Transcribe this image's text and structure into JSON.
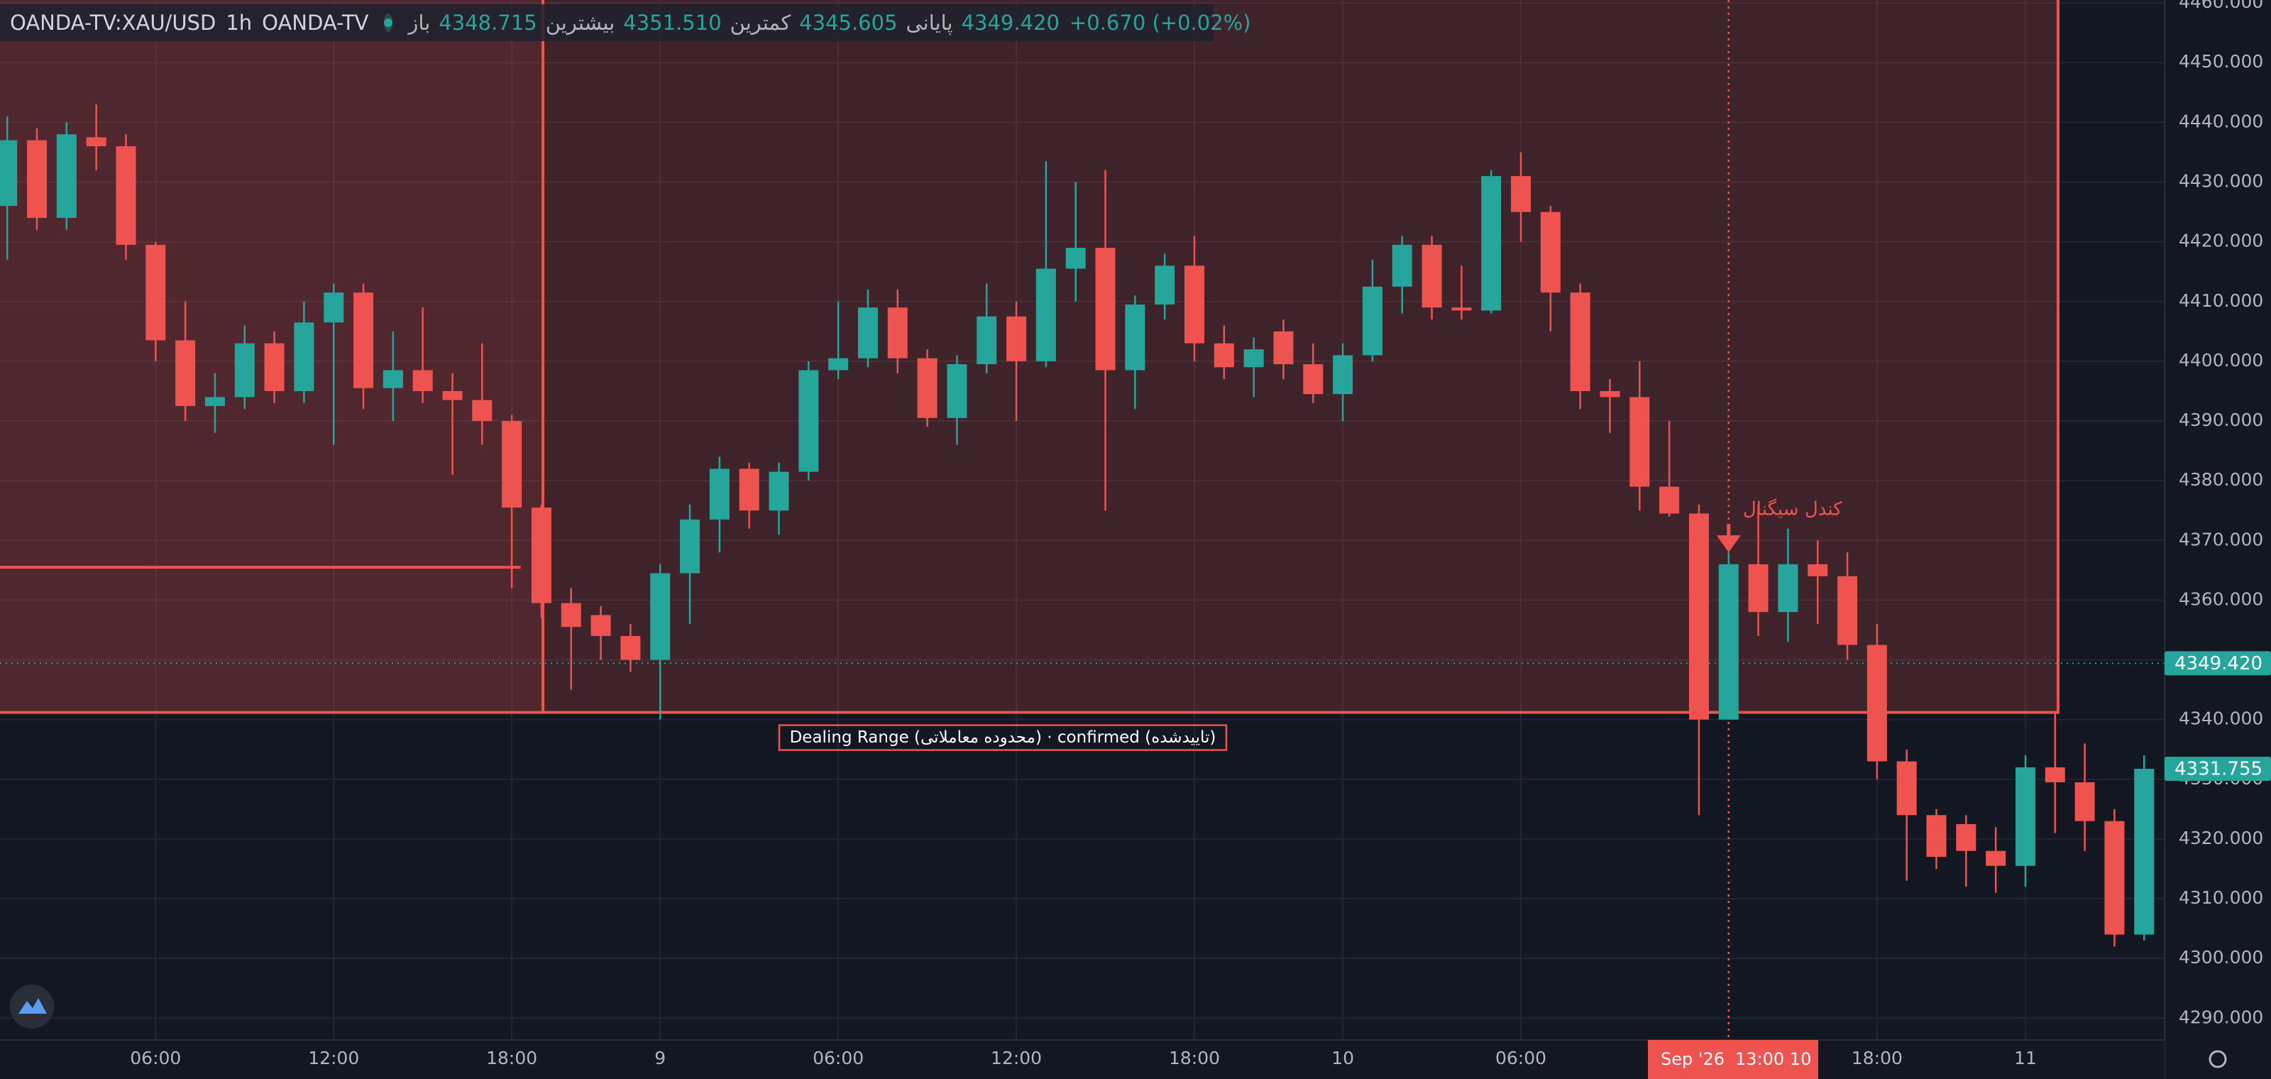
{
  "header": {
    "symbol": "OANDA-TV:XAU/USD",
    "interval": "1h",
    "source": "OANDA-TV",
    "items": [
      {
        "label": "باز",
        "value": "4348.715"
      },
      {
        "label": "بیشترین",
        "value": "4351.510"
      },
      {
        "label": "کمترین",
        "value": "4345.605"
      },
      {
        "label": "پایانی",
        "value": "4349.420"
      }
    ],
    "change": "+0.670 (+0.02%)"
  },
  "chart_data": {
    "type": "candlestick",
    "up_color": "#26a69a",
    "down_color": "#ef5350",
    "grid": true,
    "open": [
      4426,
      4437,
      4424,
      4437.5,
      4436,
      4419.5,
      4403.5,
      4392.5,
      4394,
      4403,
      4395,
      4406.5,
      4411.5,
      4395.5,
      4398.5,
      4395,
      4393.5,
      4390,
      4375.5,
      4359.5,
      4357.5,
      4354,
      4350,
      4364.5,
      4373.5,
      4382,
      4375,
      4381.5,
      4398.5,
      4400.5,
      4409,
      4400.5,
      4390.5,
      4399.5,
      4407.5,
      4400,
      4415.5,
      4419,
      4398.5,
      4409.5,
      4416,
      4403,
      4399,
      4405,
      4399.5,
      4394.5,
      4401,
      4412.5,
      4419.5,
      4409,
      4408.5,
      4431,
      4425,
      4411.5,
      4395,
      4394,
      4379,
      4374.5,
      4340,
      4366,
      4358,
      4366,
      4364,
      4352.5,
      4333,
      4324,
      4322.5,
      4318,
      4315.5,
      4332,
      4329.5,
      4323,
      4304
    ],
    "high": [
      4441,
      4439,
      4440,
      4443,
      4438,
      4420,
      4410,
      4398,
      4406,
      4405,
      4410,
      4413,
      4413,
      4405,
      4409,
      4398,
      4403,
      4391,
      4376,
      4362,
      4359,
      4356,
      4366,
      4376,
      4384,
      4383,
      4383,
      4400,
      4410,
      4412,
      4412,
      4402,
      4401,
      4413,
      4410,
      4433.5,
      4430,
      4432,
      4411,
      4418,
      4421,
      4406,
      4404,
      4407,
      4403,
      4403,
      4417,
      4421,
      4421,
      4416,
      4432,
      4435,
      4426,
      4413,
      4397,
      4400,
      4390,
      4376,
      4368,
      4376,
      4372,
      4370,
      4368,
      4356,
      4335,
      4325,
      4324,
      4322,
      4334,
      4341,
      4336,
      4325,
      4334
    ],
    "low": [
      4417,
      4422,
      4422,
      4432,
      4417,
      4400,
      4390,
      4388,
      4392,
      4393,
      4393,
      4386,
      4392,
      4390,
      4393,
      4381,
      4386,
      4362,
      4357,
      4345,
      4350,
      4348,
      4340,
      4356,
      4368,
      4372,
      4371,
      4380,
      4397,
      4399,
      4398,
      4389,
      4386,
      4398,
      4390,
      4399,
      4410,
      4375,
      4392,
      4407,
      4400,
      4397,
      4394,
      4397,
      4393,
      4390,
      4400,
      4408,
      4407,
      4407,
      4408,
      4420,
      4405,
      4392,
      4388,
      4375,
      4374,
      4324,
      4340,
      4354,
      4353,
      4356,
      4350,
      4330,
      4313,
      4315,
      4312,
      4311,
      4312,
      4321,
      4318,
      4302,
      4303
    ],
    "close": [
      4437,
      4424,
      4438,
      4436,
      4419.5,
      4403.5,
      4392.5,
      4394,
      4403,
      4395,
      4406.5,
      4411.5,
      4395.5,
      4398.5,
      4395,
      4393.5,
      4390,
      4375.5,
      4359.5,
      4355.5,
      4354,
      4350,
      4364.5,
      4373.5,
      4382,
      4375,
      4381.5,
      4398.5,
      4400.5,
      4409,
      4400.5,
      4390.5,
      4399.5,
      4407.5,
      4400,
      4415.5,
      4419,
      4398.5,
      4409.5,
      4416,
      4403,
      4399,
      4402,
      4399.5,
      4394.5,
      4401,
      4412.5,
      4419.5,
      4409,
      4408.5,
      4431,
      4425,
      4411.5,
      4395,
      4394,
      4379,
      4374.5,
      4340,
      4366,
      4358,
      4366,
      4364,
      4352.5,
      4333,
      4324,
      4317,
      4318,
      4315.5,
      4332,
      4329.5,
      4323,
      4304,
      4331.755
    ],
    "ylim": [
      4286.35,
      4460.49
    ],
    "yticks": [
      {
        "value": 4290,
        "label": "4290.000"
      },
      {
        "value": 4300,
        "label": "4300.000"
      },
      {
        "value": 4310,
        "label": "4310.000"
      },
      {
        "value": 4320,
        "label": "4320.000"
      },
      {
        "value": 4330,
        "label": "4330.000"
      },
      {
        "value": 4340,
        "label": "4340.000"
      },
      {
        "value": 4350,
        "label": "4350.000"
      },
      {
        "value": 4360,
        "label": "4360.000"
      },
      {
        "value": 4370,
        "label": "4370.000"
      },
      {
        "value": 4380,
        "label": "4380.000"
      },
      {
        "value": 4390,
        "label": "4390.000"
      },
      {
        "value": 4400,
        "label": "4400.000"
      },
      {
        "value": 4410,
        "label": "4410.000"
      },
      {
        "value": 4420,
        "label": "4420.000"
      },
      {
        "value": 4430,
        "label": "4430.000"
      },
      {
        "value": 4440,
        "label": "4440.000"
      },
      {
        "value": 4450,
        "label": "4450.000"
      },
      {
        "value": 4460,
        "label": "4460.000"
      }
    ],
    "xticks": [
      {
        "value": 5,
        "label": "06:00"
      },
      {
        "value": 11,
        "label": "12:00"
      },
      {
        "value": 17,
        "label": "18:00"
      },
      {
        "value": 22,
        "label": "9"
      },
      {
        "value": 28,
        "label": "06:00"
      },
      {
        "value": 34,
        "label": "12:00"
      },
      {
        "value": 40,
        "label": "18:00"
      },
      {
        "value": 45,
        "label": "10"
      },
      {
        "value": 51,
        "label": "06:00"
      },
      {
        "value": 63,
        "label": "18:00"
      },
      {
        "value": 68,
        "label": "11"
      }
    ],
    "price_labels": [
      {
        "value": 4349.42,
        "label": "4349.420"
      },
      {
        "value": 4331.755,
        "label": "4331.755"
      }
    ],
    "dealing_range": {
      "label": "Dealing Range (محدوده معاملاتی) · confirmed (تاییدشده)",
      "low": 4341.2,
      "level": 4365.5
    },
    "signal_label": "کندل سیگنال",
    "crosshair_date": "Sep '26",
    "crosshair_time": "13:00 10"
  }
}
